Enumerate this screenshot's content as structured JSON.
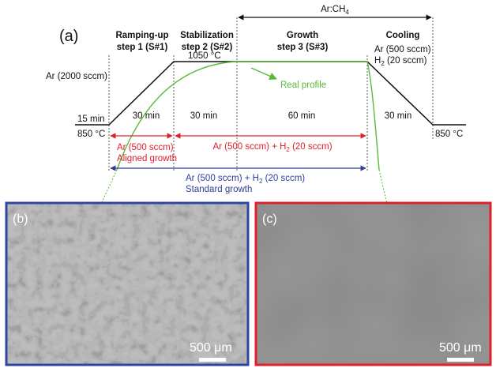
{
  "panel_a": {
    "label": "(a)",
    "steps": [
      {
        "title": [
          "Ramping-up",
          "step 1 (S#1)"
        ]
      },
      {
        "title": [
          "Stabilization",
          "step 2 (S#2)"
        ]
      },
      {
        "title": [
          "Growth",
          "step 3 (S#3)"
        ]
      },
      {
        "title": [
          "Cooling"
        ]
      }
    ],
    "gas_top": {
      "text": "Ar:CH",
      "sub": "4"
    },
    "ar_2000": "Ar (2000 sccm)",
    "peak_temp": "1050 °C",
    "real_profile": "Real profile",
    "cooling_gas": {
      "line1": "Ar (500 sccm)",
      "line2": {
        "text": "H",
        "sub": "2",
        "tail": " (20 sccm)"
      }
    },
    "start_time": "15 min",
    "start_temp": "850 °C",
    "end_temp": "850 °C",
    "durations": [
      "30 min",
      "30 min",
      "60 min",
      "30 min"
    ],
    "aligned": {
      "gas": "Ar (500 sccm)",
      "label": "Aligned growth"
    },
    "red_gas": {
      "text": "Ar (500 sccm) + H",
      "sub": "2",
      "tail": " (20 sccm)"
    },
    "standard": {
      "gas": {
        "text": "Ar (500 sccm) + H",
        "sub": "2",
        "tail": " (20 sccm)"
      },
      "label": "Standard growth"
    }
  },
  "panel_b": {
    "label": "(b)",
    "scale": "500 μm"
  },
  "panel_c": {
    "label": "(c)",
    "scale": "500 μm"
  }
}
